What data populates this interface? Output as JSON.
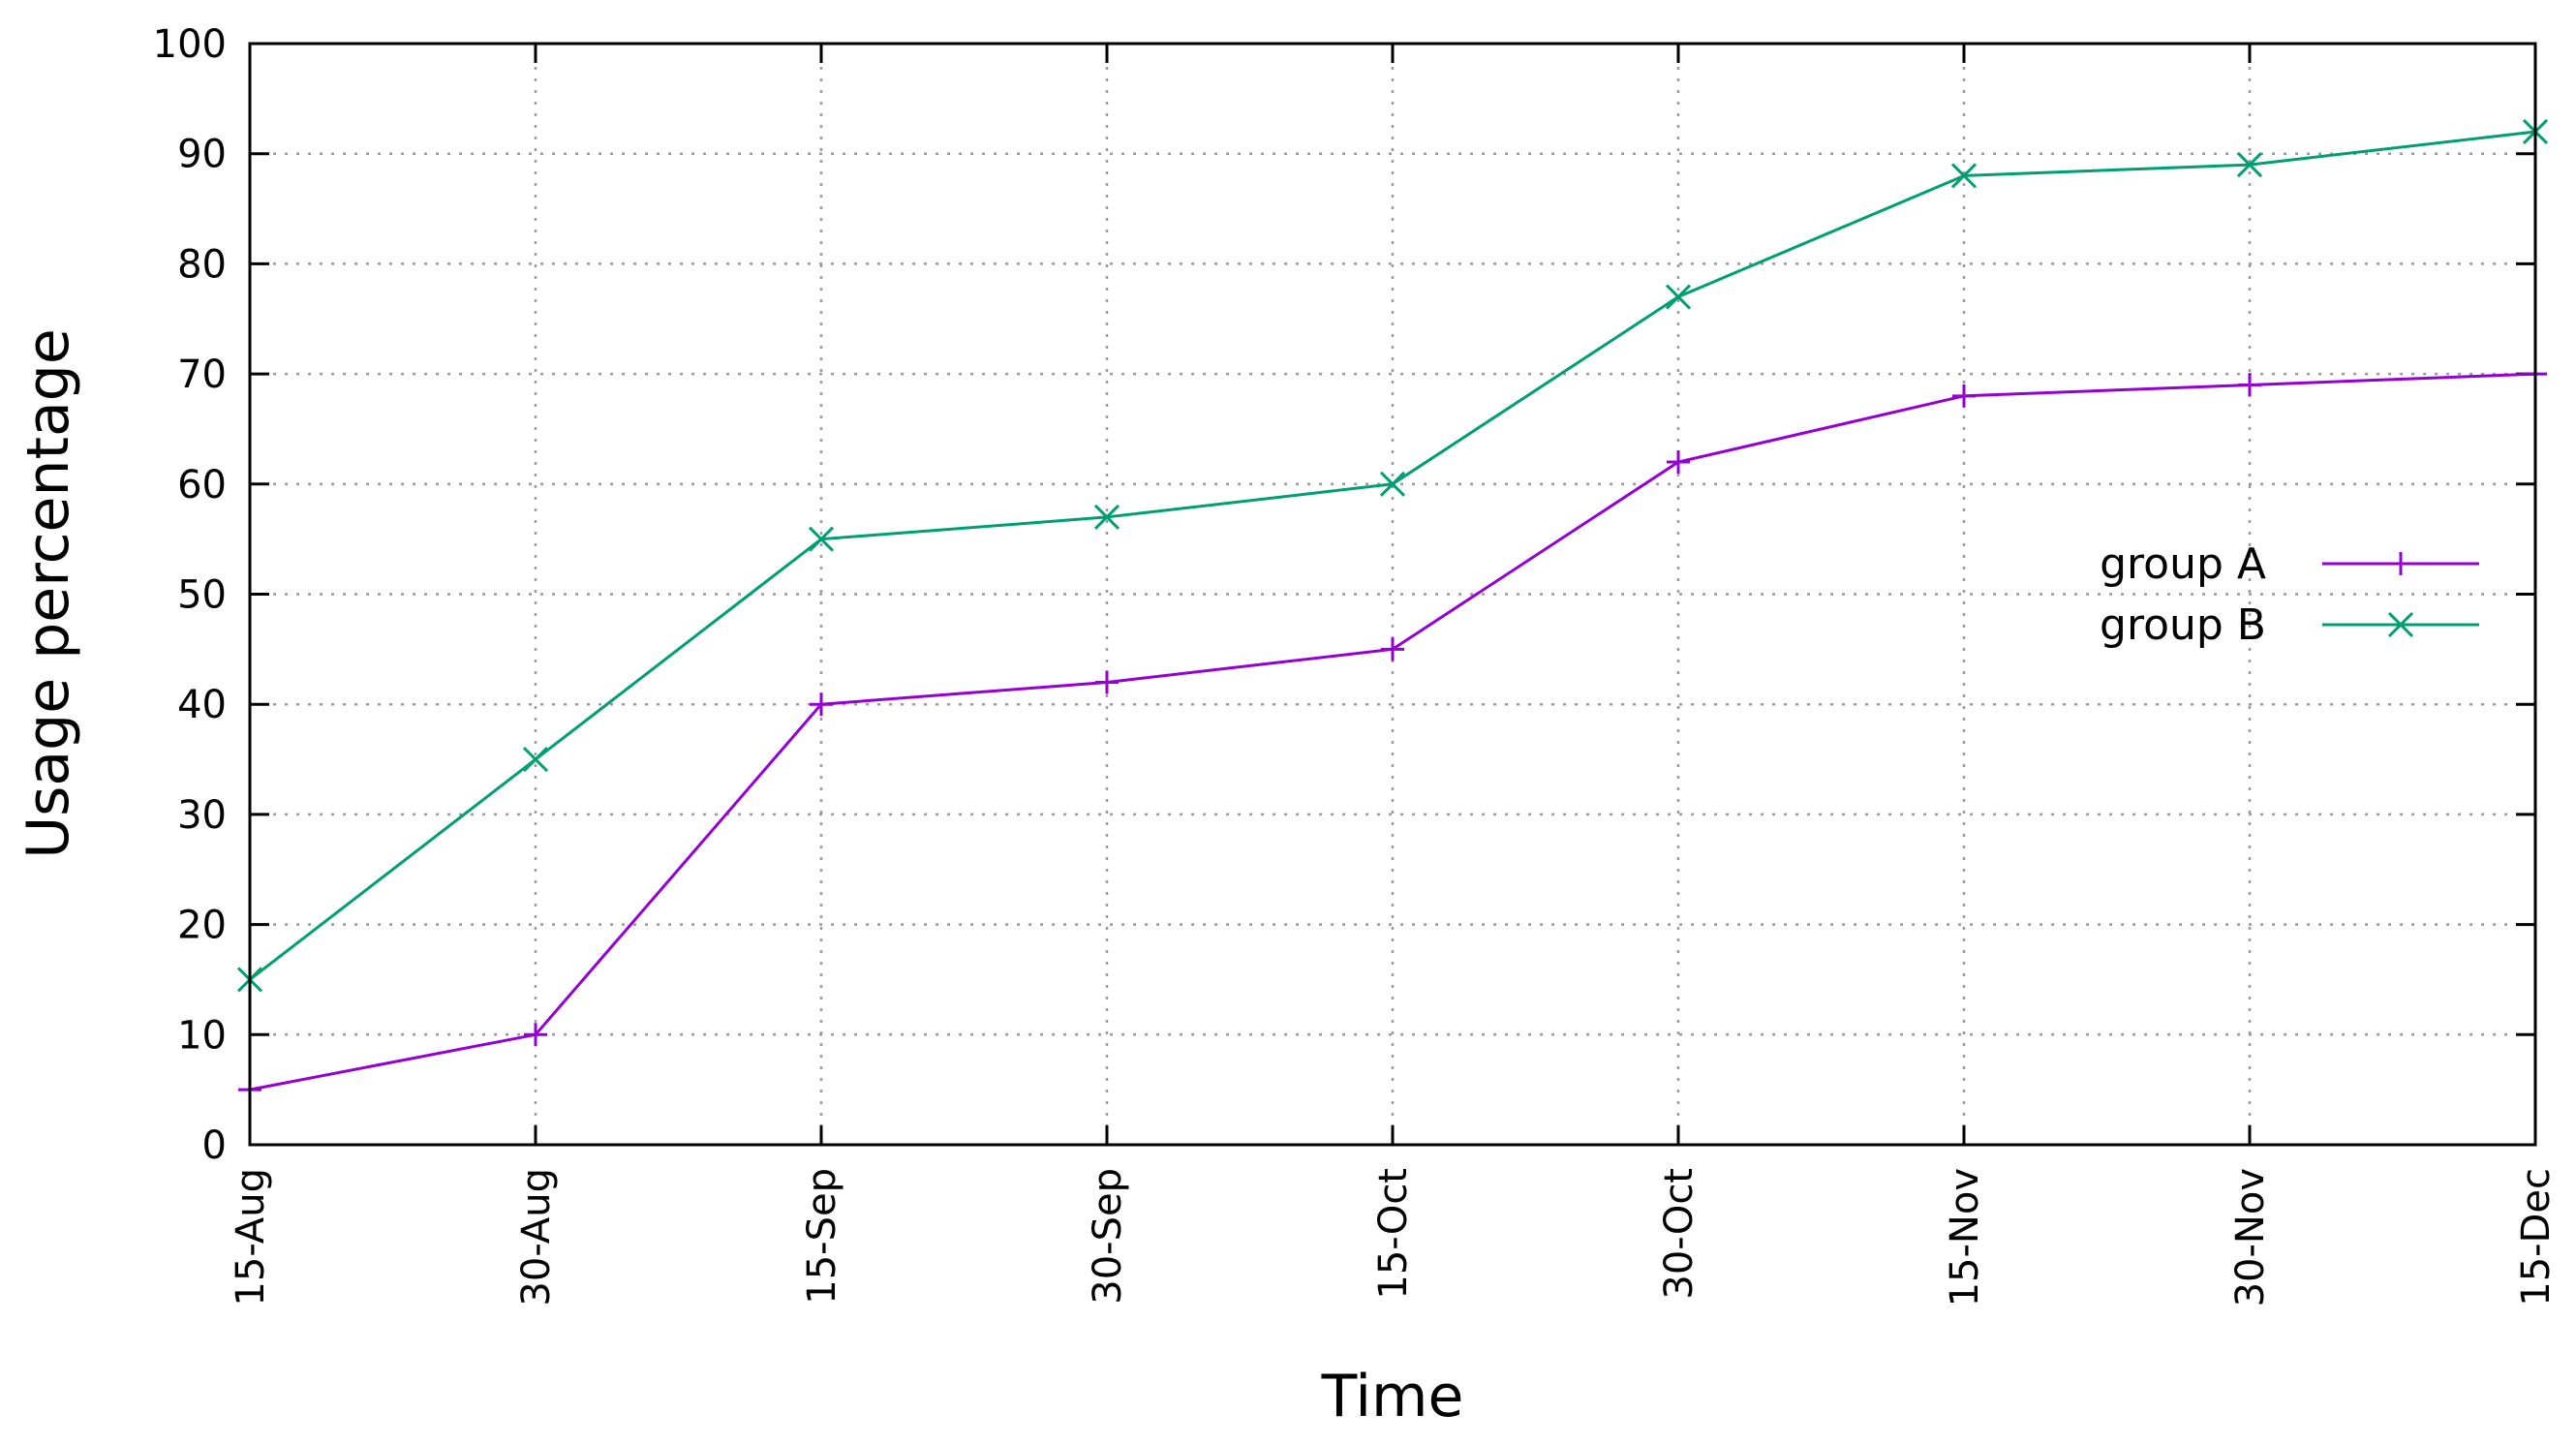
{
  "chart_data": {
    "type": "line",
    "title": "",
    "xlabel": "Time",
    "ylabel": "Usage percentage",
    "categories": [
      "15-Aug",
      "30-Aug",
      "15-Sep",
      "30-Sep",
      "15-Oct",
      "30-Oct",
      "15-Nov",
      "30-Nov",
      "15-Dec"
    ],
    "ylim": [
      0,
      100
    ],
    "yticks": [
      0,
      10,
      20,
      30,
      40,
      50,
      60,
      70,
      80,
      90,
      100
    ],
    "grid": true,
    "legend_position": "right",
    "series": [
      {
        "name": "group A",
        "color": "#9400d3",
        "marker": "plus",
        "values": [
          5,
          10,
          40,
          42,
          45,
          62,
          68,
          69,
          70
        ]
      },
      {
        "name": "group B",
        "color": "#009e73",
        "marker": "cross",
        "values": [
          15,
          35,
          55,
          57,
          60,
          77,
          88,
          89,
          92
        ]
      }
    ]
  }
}
